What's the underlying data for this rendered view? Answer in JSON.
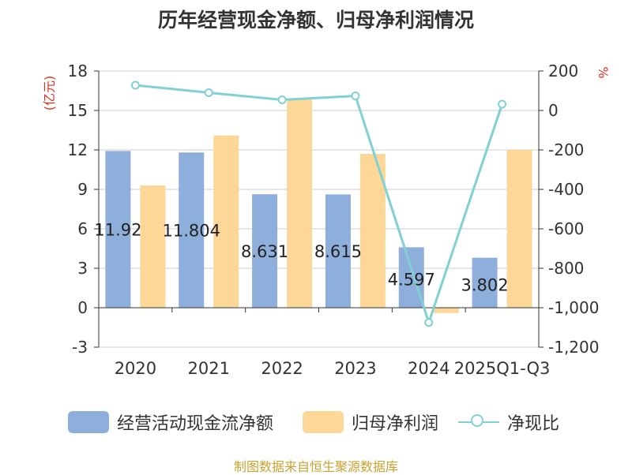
{
  "chart_data": {
    "type": "bar+line",
    "title": "历年经营现金净额、归母净利润情况",
    "categories": [
      "2020",
      "2021",
      "2022",
      "2023",
      "2024",
      "2025Q1-Q3"
    ],
    "series": [
      {
        "name": "经营活动现金流净额",
        "kind": "bar",
        "axis": "left",
        "values": [
          11.92,
          11.804,
          8.631,
          8.615,
          4.597,
          3.802
        ],
        "labels": [
          "11.92",
          "11.804",
          "8.631",
          "8.615",
          "4.597",
          "3.802"
        ]
      },
      {
        "name": "归母净利润",
        "kind": "bar",
        "axis": "left",
        "values": [
          9.3,
          13.1,
          15.9,
          11.7,
          -0.4,
          12.0
        ]
      },
      {
        "name": "净现比",
        "kind": "line",
        "axis": "right",
        "values": [
          128,
          90,
          54,
          74,
          -1075,
          32
        ]
      }
    ],
    "ylabel_left": "(亿元)",
    "ylabel_right": "%",
    "ylim_left": [
      -3,
      18
    ],
    "yticks_left": [
      -3,
      0,
      3,
      6,
      9,
      12,
      15,
      18
    ],
    "yticks_left_labels": [
      "-3",
      "0",
      "3",
      "6",
      "9",
      "12",
      "15",
      "18"
    ],
    "ylim_right": [
      -1200,
      200
    ],
    "yticks_right": [
      200,
      0,
      -200,
      -400,
      -600,
      -800,
      -1000,
      -1200
    ],
    "yticks_right_labels": [
      "200",
      "0",
      "-200",
      "-400",
      "-600",
      "-800",
      "-1,000",
      "-1,200"
    ],
    "grid": true,
    "legend_position": "bottom"
  },
  "colors": {
    "bar1": "#8eaedc",
    "bar2": "#fdd797",
    "line": "#80d0d4",
    "axis": "#333333",
    "grid": "#cccccc",
    "left_axis_label": "#e0301e",
    "source": "#c9a232"
  },
  "source_note": "制图数据来自恒生聚源数据库"
}
